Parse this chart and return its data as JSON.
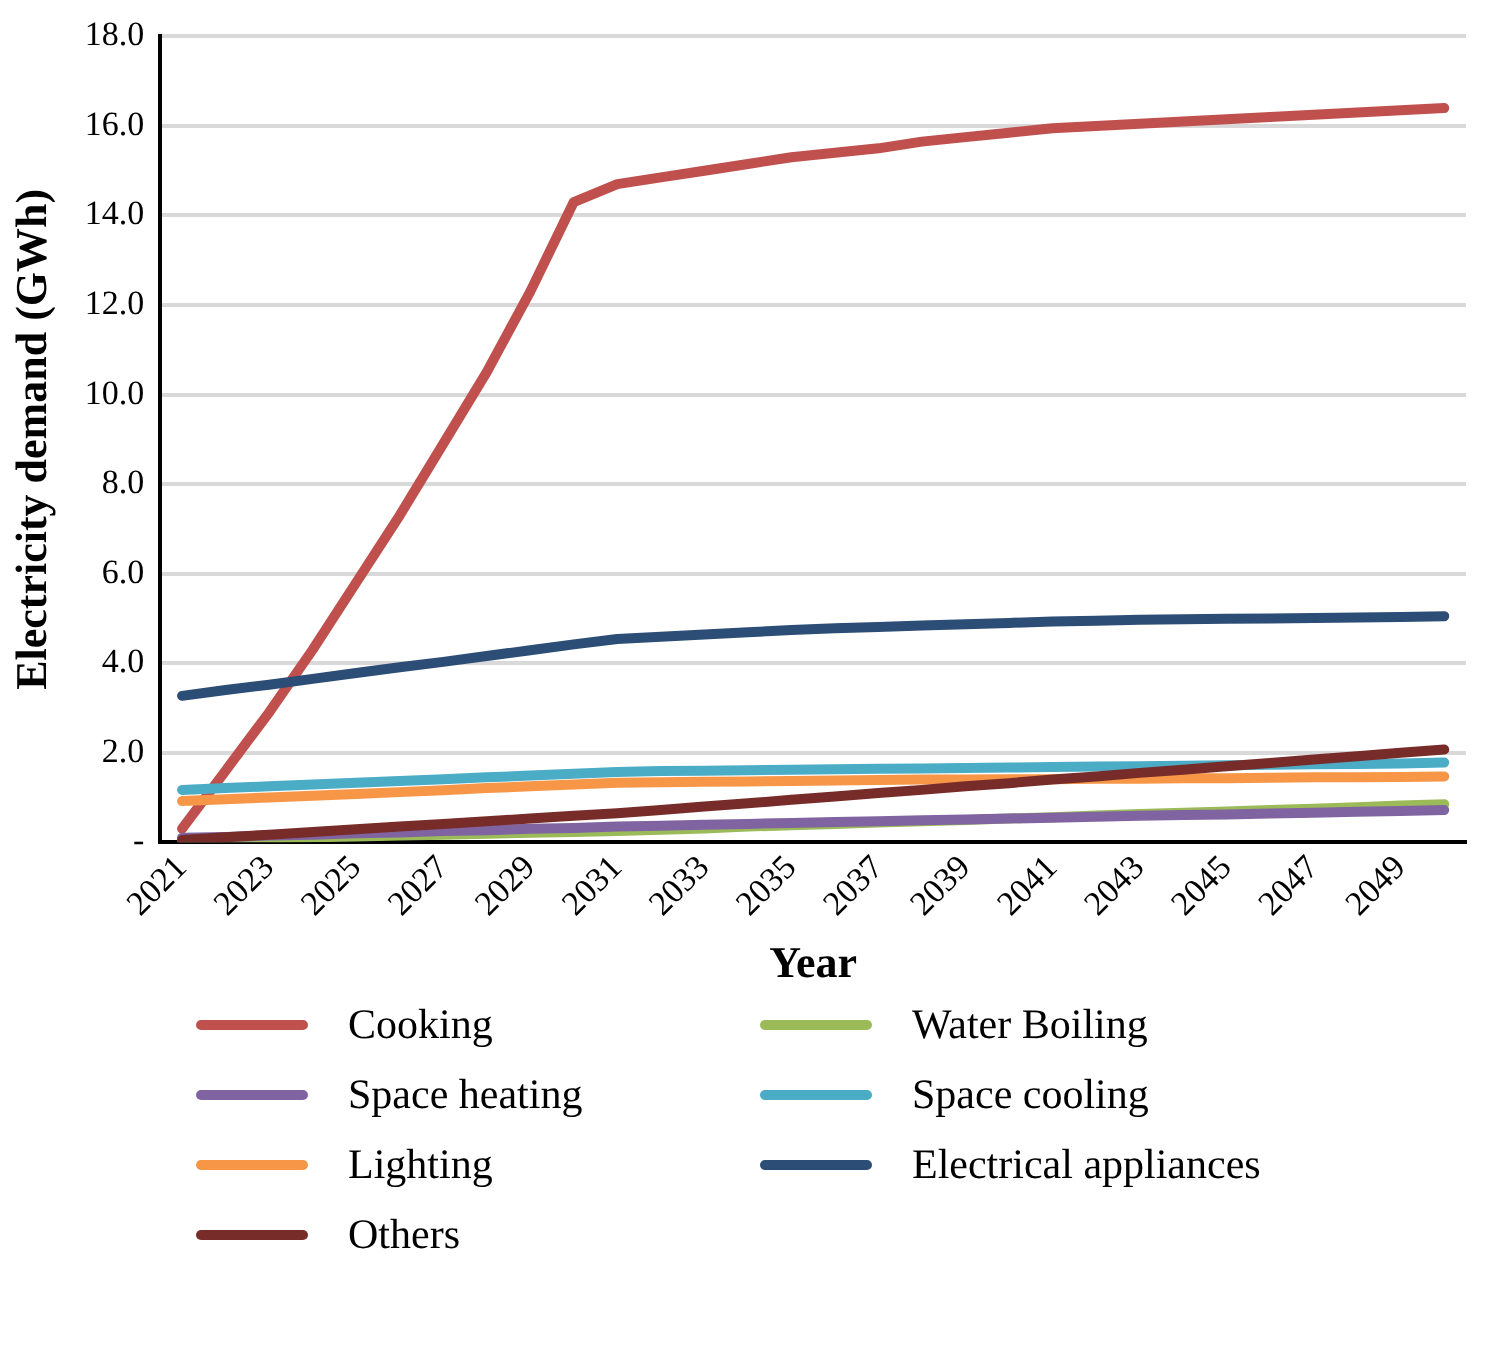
{
  "chart_data": {
    "type": "line",
    "xlabel": "Year",
    "ylabel": "Electricity demand (GWh)",
    "categories": [
      "2021",
      null,
      "2023",
      null,
      "2025",
      null,
      "2027",
      null,
      "2029",
      null,
      "2031",
      null,
      "2033",
      null,
      "2035",
      null,
      "2037",
      null,
      "2039",
      null,
      "2041",
      null,
      "2043",
      null,
      "2045",
      null,
      "2047",
      null,
      "2049",
      null
    ],
    "series": [
      {
        "name": "Cooking",
        "color": "#c0504d",
        "values": [
          0.3,
          1.6,
          2.9,
          4.3,
          5.8,
          7.3,
          8.9,
          10.5,
          12.3,
          14.3,
          14.7,
          14.85,
          15.0,
          15.15,
          15.3,
          15.4,
          15.5,
          15.65,
          15.75,
          15.85,
          15.95,
          16.0,
          16.05,
          16.1,
          16.15,
          16.2,
          16.25,
          16.3,
          16.35,
          16.4
        ]
      },
      {
        "name": "Water Boiling",
        "color": "#9bbb59",
        "values": [
          0.05,
          0.07,
          0.09,
          0.11,
          0.13,
          0.15,
          0.17,
          0.19,
          0.21,
          0.23,
          0.25,
          0.28,
          0.31,
          0.35,
          0.38,
          0.41,
          0.44,
          0.47,
          0.5,
          0.53,
          0.56,
          0.6,
          0.63,
          0.66,
          0.69,
          0.72,
          0.75,
          0.78,
          0.82,
          0.85
        ]
      },
      {
        "name": "Space heating",
        "color": "#8064a2",
        "values": [
          0.1,
          0.12,
          0.15,
          0.17,
          0.2,
          0.22,
          0.25,
          0.27,
          0.3,
          0.32,
          0.35,
          0.37,
          0.39,
          0.41,
          0.43,
          0.45,
          0.47,
          0.49,
          0.51,
          0.53,
          0.55,
          0.57,
          0.59,
          0.61,
          0.62,
          0.64,
          0.66,
          0.68,
          0.7,
          0.72
        ]
      },
      {
        "name": "Space cooling",
        "color": "#4bacc6",
        "values": [
          1.17,
          1.21,
          1.25,
          1.29,
          1.33,
          1.37,
          1.41,
          1.45,
          1.49,
          1.53,
          1.57,
          1.59,
          1.6,
          1.61,
          1.62,
          1.63,
          1.64,
          1.65,
          1.66,
          1.67,
          1.68,
          1.69,
          1.7,
          1.71,
          1.72,
          1.73,
          1.74,
          1.75,
          1.76,
          1.78
        ]
      },
      {
        "name": "Lighting",
        "color": "#f79646",
        "values": [
          0.92,
          0.96,
          1.0,
          1.04,
          1.08,
          1.12,
          1.16,
          1.21,
          1.25,
          1.29,
          1.33,
          1.34,
          1.35,
          1.36,
          1.37,
          1.38,
          1.39,
          1.4,
          1.4,
          1.41,
          1.41,
          1.42,
          1.42,
          1.43,
          1.43,
          1.44,
          1.45,
          1.45,
          1.46,
          1.47
        ]
      },
      {
        "name": "Electrical appliances",
        "color": "#2c4d75",
        "values": [
          3.27,
          3.4,
          3.52,
          3.65,
          3.78,
          3.91,
          4.03,
          4.16,
          4.29,
          4.42,
          4.54,
          4.59,
          4.64,
          4.69,
          4.74,
          4.78,
          4.81,
          4.84,
          4.87,
          4.9,
          4.93,
          4.95,
          4.97,
          4.98,
          4.99,
          5.0,
          5.01,
          5.02,
          5.03,
          5.05
        ]
      },
      {
        "name": "Others",
        "color": "#772c2a",
        "values": [
          0.05,
          0.11,
          0.17,
          0.23,
          0.29,
          0.35,
          0.41,
          0.47,
          0.53,
          0.59,
          0.65,
          0.72,
          0.8,
          0.87,
          0.95,
          1.02,
          1.1,
          1.17,
          1.25,
          1.32,
          1.4,
          1.47,
          1.55,
          1.62,
          1.7,
          1.77,
          1.85,
          1.92,
          2.0,
          2.07
        ]
      }
    ],
    "ylim": [
      0,
      18
    ],
    "yticks": [
      {
        "value": 0,
        "label": "-"
      },
      {
        "value": 2,
        "label": "2.0"
      },
      {
        "value": 4,
        "label": "4.0"
      },
      {
        "value": 6,
        "label": "6.0"
      },
      {
        "value": 8,
        "label": "8.0"
      },
      {
        "value": 10,
        "label": "10.0"
      },
      {
        "value": 12,
        "label": "12.0"
      },
      {
        "value": 14,
        "label": "14.0"
      },
      {
        "value": 16,
        "label": "16.0"
      },
      {
        "value": 18,
        "label": "18.0"
      }
    ],
    "grid": "y",
    "legend": "bottom",
    "marker": "none",
    "line_style": "solid"
  }
}
